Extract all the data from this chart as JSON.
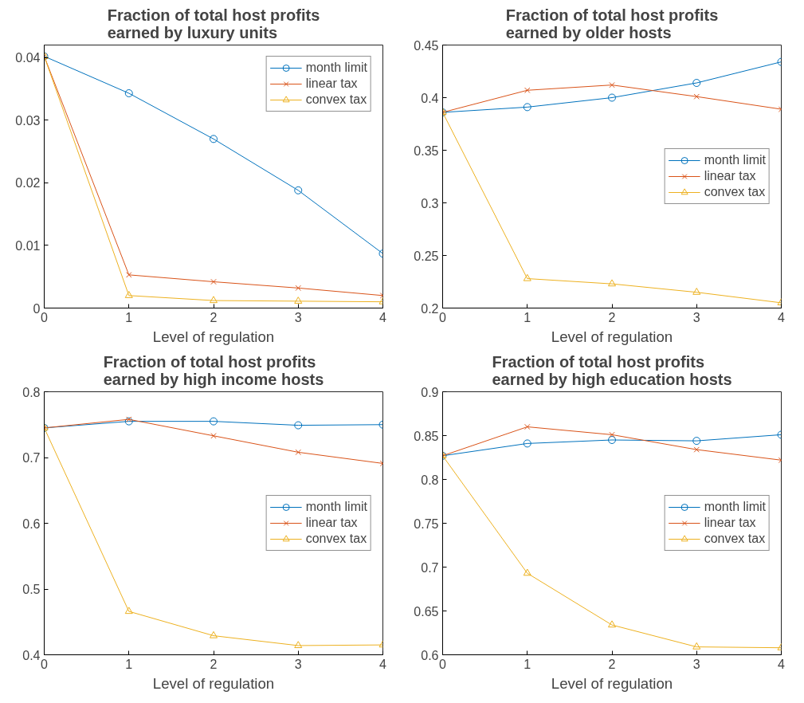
{
  "chart_data": [
    {
      "type": "line",
      "title": "Fraction of total host profits\nearned by luxury units",
      "xlabel": "Level of regulation",
      "x": [
        0,
        1,
        2,
        3,
        4
      ],
      "xlim": [
        0,
        4
      ],
      "xticks": [
        0,
        1,
        2,
        3,
        4
      ],
      "ylim": [
        0,
        0.042
      ],
      "yticks": [
        0,
        0.01,
        0.02,
        0.03,
        0.04
      ],
      "grid": false,
      "legend": "top right",
      "series": [
        {
          "name": "month limit",
          "color": "#0072bd",
          "marker": "circle",
          "values": [
            0.0402,
            0.0343,
            0.027,
            0.0188,
            0.0087
          ]
        },
        {
          "name": "linear tax",
          "color": "#d95319",
          "marker": "cross",
          "values": [
            0.0402,
            0.0053,
            0.0042,
            0.0032,
            0.002
          ]
        },
        {
          "name": "convex tax",
          "color": "#edb120",
          "marker": "triangle",
          "values": [
            0.0402,
            0.002,
            0.0012,
            0.0011,
            0.001
          ]
        }
      ]
    },
    {
      "type": "line",
      "title": "Fraction of total host profits\nearned by older hosts",
      "xlabel": "Level of regulation",
      "x": [
        0,
        1,
        2,
        3,
        4
      ],
      "xlim": [
        0,
        4
      ],
      "xticks": [
        0,
        1,
        2,
        3,
        4
      ],
      "ylim": [
        0.2,
        0.45
      ],
      "yticks": [
        0.2,
        0.25,
        0.3,
        0.35,
        0.4,
        0.45
      ],
      "grid": false,
      "legend": "right",
      "series": [
        {
          "name": "month limit",
          "color": "#0072bd",
          "marker": "circle",
          "values": [
            0.386,
            0.391,
            0.4,
            0.414,
            0.434
          ]
        },
        {
          "name": "linear tax",
          "color": "#d95319",
          "marker": "cross",
          "values": [
            0.386,
            0.407,
            0.412,
            0.401,
            0.389
          ]
        },
        {
          "name": "convex tax",
          "color": "#edb120",
          "marker": "triangle",
          "values": [
            0.386,
            0.228,
            0.223,
            0.215,
            0.205
          ]
        }
      ]
    },
    {
      "type": "line",
      "title": "Fraction of total host profits\nearned by high income hosts",
      "xlabel": "Level of regulation",
      "x": [
        0,
        1,
        2,
        3,
        4
      ],
      "xlim": [
        0,
        4
      ],
      "xticks": [
        0,
        1,
        2,
        3,
        4
      ],
      "ylim": [
        0.4,
        0.8
      ],
      "yticks": [
        0.4,
        0.5,
        0.6,
        0.7,
        0.8
      ],
      "grid": false,
      "legend": "right",
      "series": [
        {
          "name": "month limit",
          "color": "#0072bd",
          "marker": "circle",
          "values": [
            0.745,
            0.755,
            0.755,
            0.749,
            0.75
          ]
        },
        {
          "name": "linear tax",
          "color": "#d95319",
          "marker": "cross",
          "values": [
            0.745,
            0.758,
            0.733,
            0.708,
            0.691
          ]
        },
        {
          "name": "convex tax",
          "color": "#edb120",
          "marker": "triangle",
          "values": [
            0.745,
            0.466,
            0.429,
            0.414,
            0.415
          ]
        }
      ]
    },
    {
      "type": "line",
      "title": "Fraction of total host profits\nearned by high education hosts",
      "xlabel": "Level of regulation",
      "x": [
        0,
        1,
        2,
        3,
        4
      ],
      "xlim": [
        0,
        4
      ],
      "xticks": [
        0,
        1,
        2,
        3,
        4
      ],
      "ylim": [
        0.6,
        0.9
      ],
      "yticks": [
        0.6,
        0.65,
        0.7,
        0.75,
        0.8,
        0.85,
        0.9
      ],
      "grid": false,
      "legend": "right",
      "series": [
        {
          "name": "month limit",
          "color": "#0072bd",
          "marker": "circle",
          "values": [
            0.827,
            0.841,
            0.845,
            0.844,
            0.851
          ]
        },
        {
          "name": "linear tax",
          "color": "#d95319",
          "marker": "cross",
          "values": [
            0.827,
            0.86,
            0.851,
            0.834,
            0.822
          ]
        },
        {
          "name": "convex tax",
          "color": "#edb120",
          "marker": "triangle",
          "values": [
            0.827,
            0.693,
            0.634,
            0.609,
            0.608
          ]
        }
      ]
    }
  ]
}
